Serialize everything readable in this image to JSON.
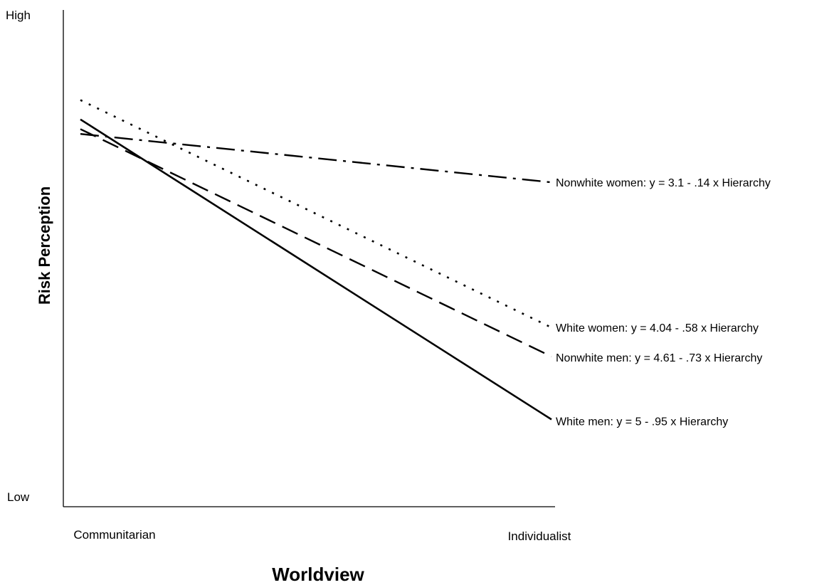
{
  "chart_data": {
    "type": "line",
    "title": "",
    "xlabel": "Worldview",
    "ylabel": "Risk Perception",
    "x_tick_labels": [
      "Communitarian",
      "Individualist"
    ],
    "y_tick_labels": [
      "Low",
      "High"
    ],
    "xlim": [
      0,
      1
    ],
    "ylim": [
      0,
      1
    ],
    "grid": false,
    "legend": "none (series labeled directly at line ends)",
    "series": [
      {
        "name": "White men: y = 5 - .95 x Hierarchy",
        "style": "solid",
        "x": [
          0,
          1
        ],
        "y": [
          0.79,
          0.17
        ]
      },
      {
        "name": "Nonwhite men: y = 4.61 - .73 x Hierarchy",
        "style": "dashed",
        "x": [
          0,
          1
        ],
        "y": [
          0.77,
          0.3
        ]
      },
      {
        "name": "White women: y = 4.04 - .58 x Hierarchy",
        "style": "dotted",
        "x": [
          0,
          1
        ],
        "y": [
          0.83,
          0.36
        ]
      },
      {
        "name": "Nonwhite women: y = 3.1 - .14 x Hierarchy",
        "style": "dash-dot",
        "x": [
          0,
          1
        ],
        "y": [
          0.76,
          0.66
        ]
      }
    ],
    "colors": {
      "line": "#000000",
      "axis": "#000000",
      "background": "#ffffff"
    }
  }
}
